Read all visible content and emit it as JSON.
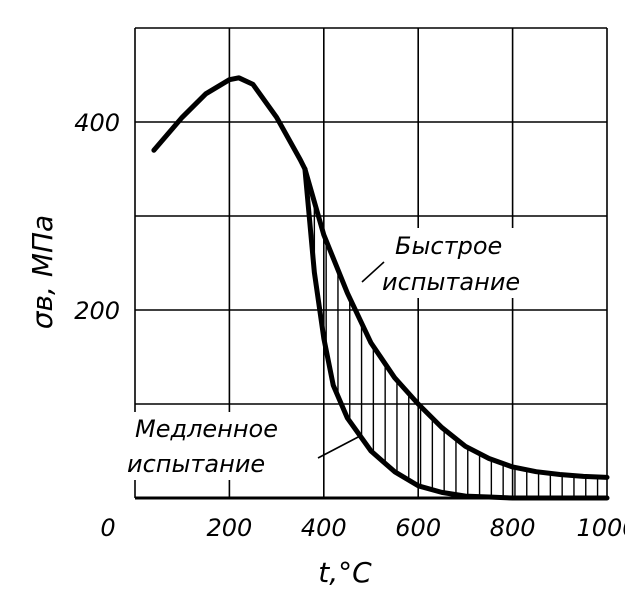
{
  "chart_data": {
    "type": "line",
    "title": "",
    "xlabel": "t,°C",
    "ylabel": "σв, МПа",
    "xlim": [
      0,
      1000
    ],
    "ylim": [
      0,
      500
    ],
    "x_ticks": [
      0,
      200,
      400,
      600,
      800,
      1000
    ],
    "y_ticks": [
      200,
      400
    ],
    "x_tick_labels": [
      "0",
      "200",
      "400",
      "600",
      "800",
      "1000"
    ],
    "y_tick_labels": [
      "200",
      "400"
    ],
    "grid": true,
    "grid_x": [
      0,
      200,
      400,
      600,
      800,
      1000
    ],
    "grid_y": [
      100,
      200,
      300,
      400,
      500
    ],
    "series": [
      {
        "name": "",
        "x": [
          40,
          100,
          150,
          200,
          220,
          250,
          300,
          350,
          360
        ],
        "y": [
          370,
          405,
          430,
          445,
          447,
          440,
          405,
          360,
          350
        ]
      },
      {
        "name": "",
        "x": [
          360,
          400,
          450,
          500,
          550,
          600,
          650,
          700,
          750,
          800,
          850,
          900,
          950,
          1000
        ],
        "y": [
          350,
          280,
          218,
          165,
          128,
          100,
          75,
          55,
          42,
          33,
          28,
          25,
          23,
          22
        ]
      },
      {
        "name": "",
        "x": [
          360,
          380,
          400,
          420,
          450,
          500,
          550,
          600,
          650,
          700,
          750,
          800,
          850,
          1000
        ],
        "y": [
          350,
          240,
          170,
          120,
          85,
          50,
          28,
          13,
          6,
          2,
          1,
          0,
          0,
          0
        ]
      }
    ],
    "annotations": [
      {
        "lines": [
          "Быстрое",
          "испытание"
        ]
      },
      {
        "lines": [
          "Медленное",
          "испытание"
        ]
      }
    ]
  }
}
